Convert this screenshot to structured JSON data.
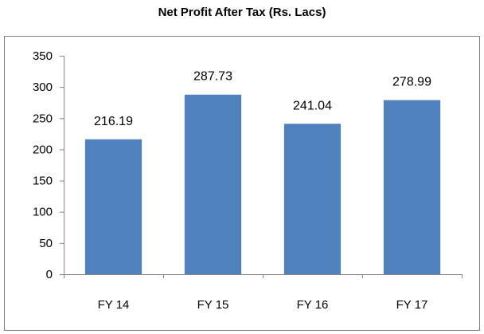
{
  "chart_data": {
    "type": "bar",
    "title": "Net Profit After Tax (Rs. Lacs)",
    "categories": [
      "FY 14",
      "FY 15",
      "FY 16",
      "FY 17"
    ],
    "values": [
      216.19,
      287.73,
      241.04,
      278.99
    ],
    "data_labels": [
      "216.19",
      "287.73",
      "241.04",
      "278.99"
    ],
    "yticks": [
      0,
      50,
      100,
      150,
      200,
      250,
      300,
      350
    ],
    "ylim": [
      0,
      350
    ],
    "xlabel": "",
    "ylabel": "",
    "grid": false,
    "legend": "none",
    "bar_color": "#4f81bd",
    "border_color": "#7f7f7f",
    "axis_color": "#868686"
  }
}
